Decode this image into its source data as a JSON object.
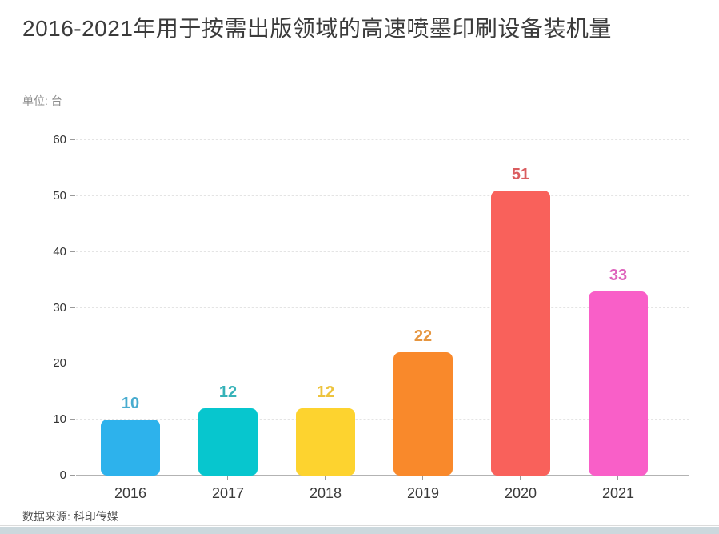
{
  "header": {
    "title": "2016-2021年用于按需出版领域的高速喷墨印刷设备装机量",
    "unit": "单位: 台"
  },
  "footer": {
    "source": "数据来源: 科印传媒"
  },
  "chart_data": {
    "type": "bar",
    "title": "2016-2021年用于按需出版领域的高速喷墨印刷设备装机量",
    "subtitle": "单位: 台",
    "categories": [
      "2016",
      "2017",
      "2018",
      "2019",
      "2020",
      "2021"
    ],
    "values": [
      10,
      12,
      12,
      22,
      51,
      33
    ],
    "bar_colors": [
      "#2DB2EC",
      "#07C6CE",
      "#FDD32F",
      "#F9892B",
      "#F9615B",
      "#F95FC8"
    ],
    "value_label_colors": [
      "#48ACCF",
      "#35B2B8",
      "#EDC33C",
      "#E6953E",
      "#DA5C5F",
      "#DE63BC"
    ],
    "xlabel": "",
    "ylabel": "",
    "ylim": [
      0,
      60
    ],
    "ytick_step": 10,
    "yticks": [
      0,
      10,
      20,
      30,
      40,
      50,
      60
    ],
    "grid": "horizontal-dashed",
    "legend": "none",
    "value_labels_shown": true,
    "source": "数据来源: 科印传媒"
  }
}
